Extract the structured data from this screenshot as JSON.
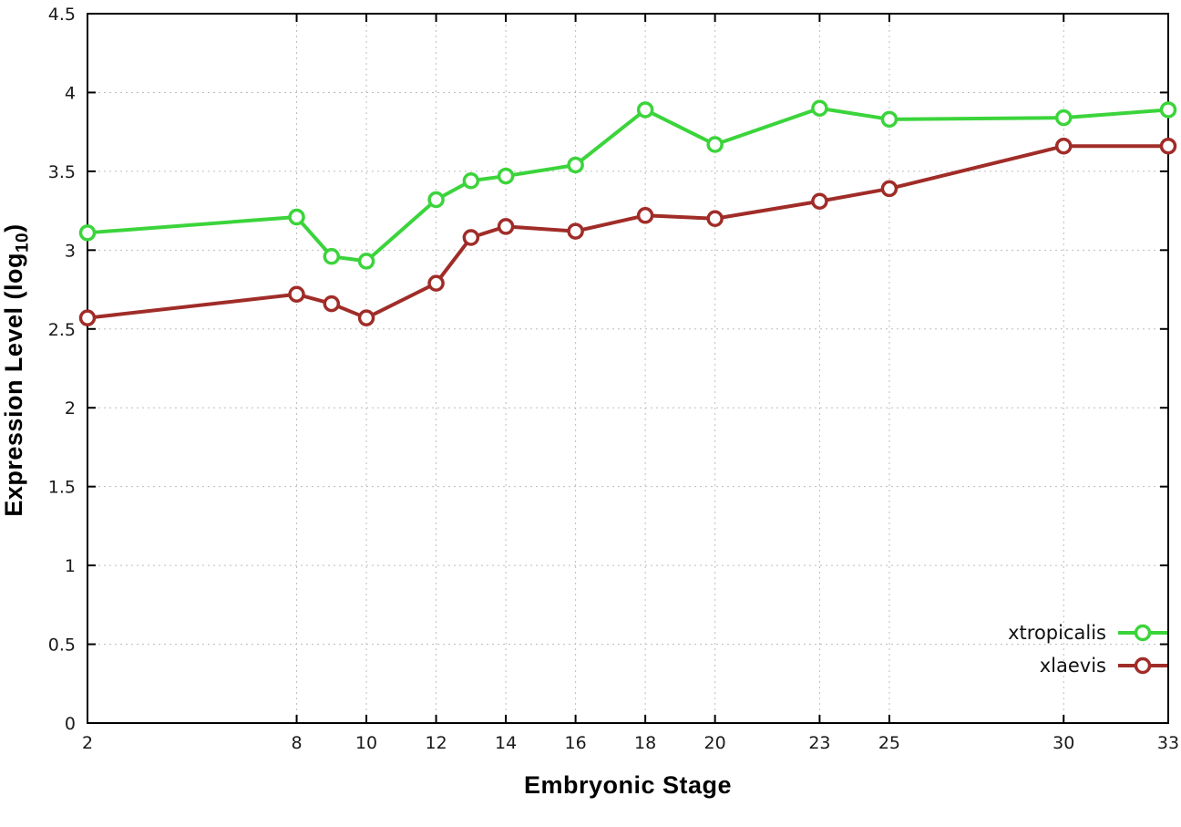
{
  "chart_data": {
    "type": "line",
    "xlabel": "Embryonic Stage",
    "ylabel": "Expression Level (log10)",
    "ylabel_main": "Expression Level (log",
    "ylabel_sub": "10",
    "ylabel_close": ")",
    "xlim": [
      2,
      33
    ],
    "ylim": [
      0,
      4.5
    ],
    "x_ticks": [
      2,
      8,
      10,
      12,
      14,
      16,
      18,
      20,
      23,
      25,
      30,
      33
    ],
    "x_tick_labels": [
      "2",
      "8",
      "10",
      "12",
      "14",
      "16",
      "18",
      "20",
      "23",
      "25",
      "30",
      "33"
    ],
    "y_ticks": [
      0,
      0.5,
      1,
      1.5,
      2,
      2.5,
      3,
      3.5,
      4,
      4.5
    ],
    "y_tick_labels": [
      "0",
      "0.5",
      "1",
      "1.5",
      "2",
      "2.5",
      "3",
      "3.5",
      "4",
      "4.5"
    ],
    "grid": true,
    "legend_position": "bottom-right",
    "x": [
      2,
      8,
      9,
      10,
      12,
      13,
      14,
      16,
      18,
      20,
      23,
      25,
      30,
      33
    ],
    "series": [
      {
        "name": "xtropicalis",
        "color": "#3bd43b",
        "values": [
          3.11,
          3.21,
          2.96,
          2.93,
          3.32,
          3.44,
          3.47,
          3.54,
          3.89,
          3.67,
          3.9,
          3.83,
          3.84,
          3.89
        ]
      },
      {
        "name": "xlaevis",
        "color": "#a02c28",
        "values": [
          2.57,
          2.72,
          2.66,
          2.57,
          2.79,
          3.08,
          3.15,
          3.12,
          3.22,
          3.2,
          3.31,
          3.39,
          3.66,
          3.66
        ]
      }
    ]
  }
}
